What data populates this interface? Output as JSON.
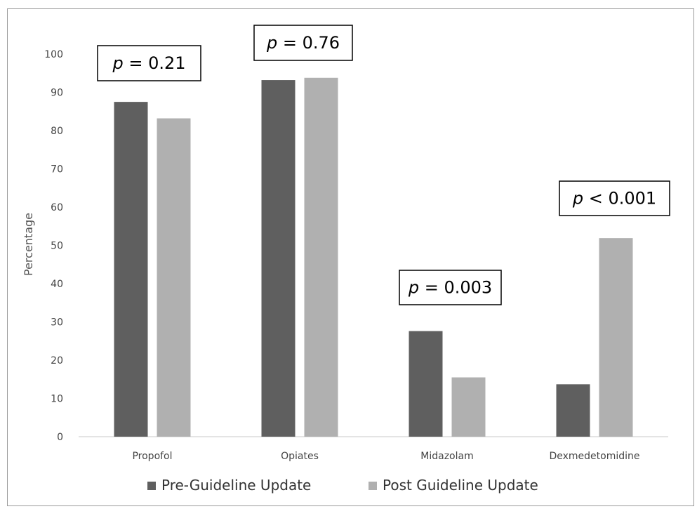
{
  "chart_data": {
    "type": "bar",
    "title": "",
    "xlabel": "",
    "ylabel": "Percentage",
    "ylim": [
      0,
      100
    ],
    "yticks": [
      0,
      10,
      20,
      30,
      40,
      50,
      60,
      70,
      80,
      90,
      100
    ],
    "categories": [
      "Propofol",
      "Opiates",
      "Midazolam",
      "Dexmedetomidine"
    ],
    "series": [
      {
        "name": "Pre-Guideline Update",
        "color": "#5f5f5f",
        "values": [
          87.5,
          93.2,
          27.6,
          13.7
        ]
      },
      {
        "name": "Post Guideline Update",
        "color": "#b0b0b0",
        "values": [
          83.2,
          93.8,
          15.5,
          51.9
        ]
      }
    ],
    "annotations": [
      {
        "category": "Propofol",
        "italic": "p",
        "text": " = 0.21"
      },
      {
        "category": "Opiates",
        "italic": "p",
        "text": " = 0.76"
      },
      {
        "category": "Midazolam",
        "italic": "p",
        "text": " = 0.003"
      },
      {
        "category": "Dexmedetomidine",
        "italic": "p",
        "text": " < 0.001"
      }
    ],
    "grid": false,
    "legend": "bottom"
  }
}
